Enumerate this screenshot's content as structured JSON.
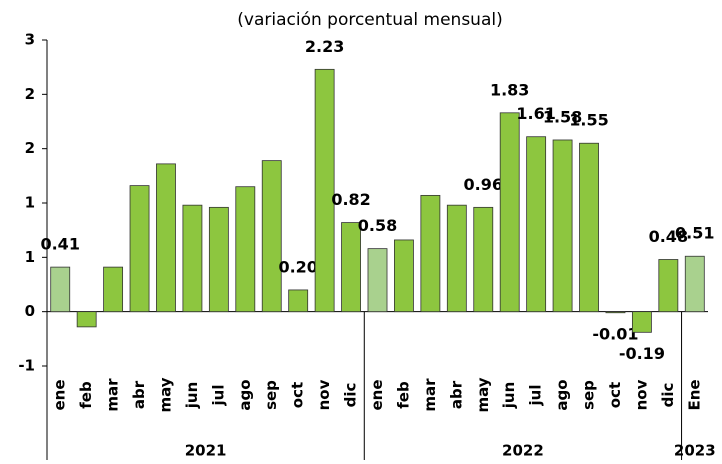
{
  "chart_data": {
    "type": "bar",
    "subtitle": "(variación porcentual mensual)",
    "categories": [
      "ene",
      "feb",
      "mar",
      "abr",
      "may",
      "jun",
      "jul",
      "ago",
      "sep",
      "oct",
      "nov",
      "dic",
      "ene",
      "feb",
      "mar",
      "abr",
      "may",
      "jun",
      "jul",
      "ago",
      "sep",
      "oct",
      "nov",
      "dic",
      "Ene"
    ],
    "values": [
      0.41,
      -0.14,
      0.41,
      1.16,
      1.36,
      0.98,
      0.96,
      1.15,
      1.39,
      0.2,
      2.23,
      0.82,
      0.58,
      0.66,
      1.07,
      0.98,
      0.96,
      1.83,
      1.61,
      1.58,
      1.55,
      -0.01,
      -0.19,
      0.48,
      0.51
    ],
    "value_labels": [
      "0.41",
      null,
      null,
      null,
      null,
      null,
      null,
      null,
      null,
      "0.20",
      "2.23",
      "0.82",
      "0.58",
      null,
      null,
      null,
      "0.96",
      "1.83",
      "1.61",
      "1.58",
      "1.55",
      "-0.01",
      "-0.19",
      "0.48",
      "0.51"
    ],
    "colors": [
      "#a9d18e",
      "#8dc63f",
      "#8dc63f",
      "#8dc63f",
      "#8dc63f",
      "#8dc63f",
      "#8dc63f",
      "#8dc63f",
      "#8dc63f",
      "#8dc63f",
      "#8dc63f",
      "#8dc63f",
      "#a9d18e",
      "#8dc63f",
      "#8dc63f",
      "#8dc63f",
      "#8dc63f",
      "#8dc63f",
      "#8dc63f",
      "#8dc63f",
      "#8dc63f",
      "#8dc63f",
      "#8dc63f",
      "#8dc63f",
      "#a9d18e"
    ],
    "groups": [
      {
        "label": "2021",
        "count": 12
      },
      {
        "label": "2022",
        "count": 12
      },
      {
        "label": "2023",
        "count": 1
      }
    ],
    "ylim": [
      -0.5,
      2.5
    ],
    "yticks": [
      {
        "value": -0.5,
        "label": "-1"
      },
      0,
      {
        "value": 0.5,
        "label": "1"
      },
      {
        "value": 1,
        "label": "1"
      },
      {
        "value": 1.5,
        "label": "2"
      },
      {
        "value": 2,
        "label": "2"
      },
      {
        "value": 2.5,
        "label": "3"
      }
    ],
    "grid": false
  }
}
